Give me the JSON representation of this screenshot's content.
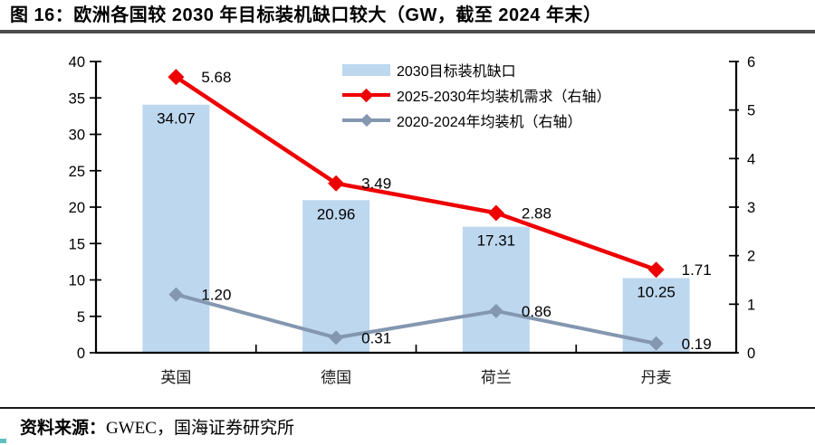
{
  "header": {
    "title": "图 16：欧洲各国较 2030 年目标装机缺口较大（GW，截至 2024 年末）"
  },
  "footer": {
    "source_label": "资料来源：",
    "source_names": "GWEC，国海证券研究所"
  },
  "colors": {
    "bar": "#BDD7EE",
    "red": "#EE0000",
    "gray": "#8497B0",
    "axis": "#000000",
    "title_rule": "#4D4D4D",
    "source_rule": "#1A1A1A",
    "corner_mark": "#2BA8A8"
  },
  "chart_data": {
    "type": "combo-bar-line",
    "title": "欧洲各国较 2030 年目标装机缺口较大（GW，截至 2024 年末）",
    "categories": [
      "英国",
      "德国",
      "荷兰",
      "丹麦"
    ],
    "series": [
      {
        "name": "2030目标装机缺口",
        "type": "bar",
        "axis": "left",
        "color": "#BDD7EE",
        "values": [
          34.07,
          20.96,
          17.31,
          10.25
        ]
      },
      {
        "name": "2025-2030年均装机需求（右轴）",
        "type": "line",
        "axis": "right",
        "color": "#EE0000",
        "marker": "diamond",
        "values": [
          5.68,
          3.49,
          2.88,
          1.71
        ]
      },
      {
        "name": "2020-2024年均装机（右轴）",
        "type": "line",
        "axis": "right",
        "color": "#8497B0",
        "marker": "diamond",
        "values": [
          1.2,
          0.31,
          0.86,
          0.19
        ]
      }
    ],
    "left_axis": {
      "min": 0,
      "max": 40,
      "step": 5
    },
    "right_axis": {
      "min": 0,
      "max": 6,
      "step": 1
    },
    "unit": "GW",
    "grid": false,
    "data_labels": true,
    "legend_position": "top-center"
  }
}
